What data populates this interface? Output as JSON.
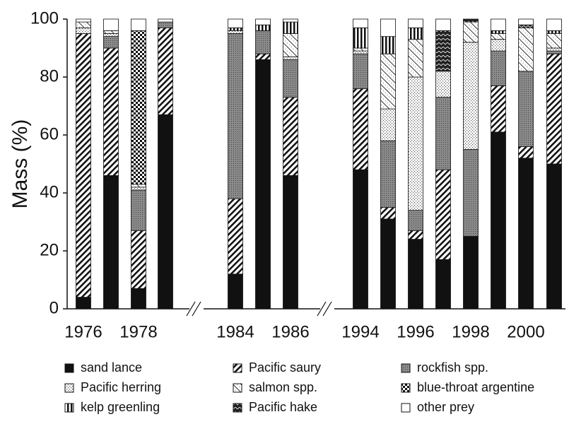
{
  "chart_data": {
    "type": "stacked-bar",
    "ylabel": "Mass (%)",
    "categories": [
      "1976",
      null,
      "1978",
      null,
      "1984",
      null,
      "1986",
      "1994",
      null,
      "1996",
      null,
      "1998",
      null,
      "2000",
      null
    ],
    "ylim": [
      0,
      100
    ],
    "yticks": [
      0,
      20,
      40,
      60,
      80,
      100
    ],
    "grid": false,
    "series": [
      {
        "name": "sand lance",
        "color": "#111111",
        "values": [
          4,
          46,
          7,
          67,
          12,
          86,
          46,
          48,
          31,
          24,
          17,
          25,
          61,
          52,
          50
        ]
      },
      {
        "name": "Pacific saury",
        "color": "#111111",
        "values": [
          91,
          44,
          20,
          30,
          26,
          2,
          27,
          28,
          4,
          3,
          31,
          0,
          16,
          4,
          38
        ]
      },
      {
        "name": "rockfish spp.",
        "color": "#8a8a8a",
        "values": [
          0,
          4,
          14,
          2,
          57,
          8,
          13,
          12,
          23,
          7,
          25,
          30,
          12,
          26,
          1
        ]
      },
      {
        "name": "Pacific herring",
        "color": "#cccccc",
        "values": [
          2,
          1,
          1,
          0,
          1,
          0,
          1,
          1,
          11,
          46,
          9,
          37,
          4,
          0,
          1
        ]
      },
      {
        "name": "salmon spp.",
        "color": "#999999",
        "values": [
          2,
          1,
          1,
          0,
          0,
          0,
          8,
          1,
          19,
          13,
          0,
          7,
          2,
          15,
          5
        ]
      },
      {
        "name": "blue-throat argentine",
        "color": "#111111",
        "values": [
          0,
          0,
          53,
          0,
          0,
          0,
          0,
          0,
          0,
          0,
          0,
          0,
          0,
          0,
          0
        ]
      },
      {
        "name": "kelp greenling",
        "color": "#111111",
        "values": [
          0,
          0,
          0,
          0,
          1,
          2,
          4,
          7,
          6,
          4,
          0,
          0,
          1,
          0,
          1
        ]
      },
      {
        "name": "Pacific hake",
        "color": "#222222",
        "values": [
          0,
          0,
          0,
          0,
          0,
          0,
          0,
          0,
          0,
          0,
          14,
          1,
          0,
          1,
          0
        ]
      },
      {
        "name": "other prey",
        "color": "#ffffff",
        "values": [
          1,
          4,
          4,
          1,
          3,
          2,
          1,
          3,
          6,
          3,
          4,
          0,
          4,
          2,
          4
        ]
      }
    ]
  }
}
